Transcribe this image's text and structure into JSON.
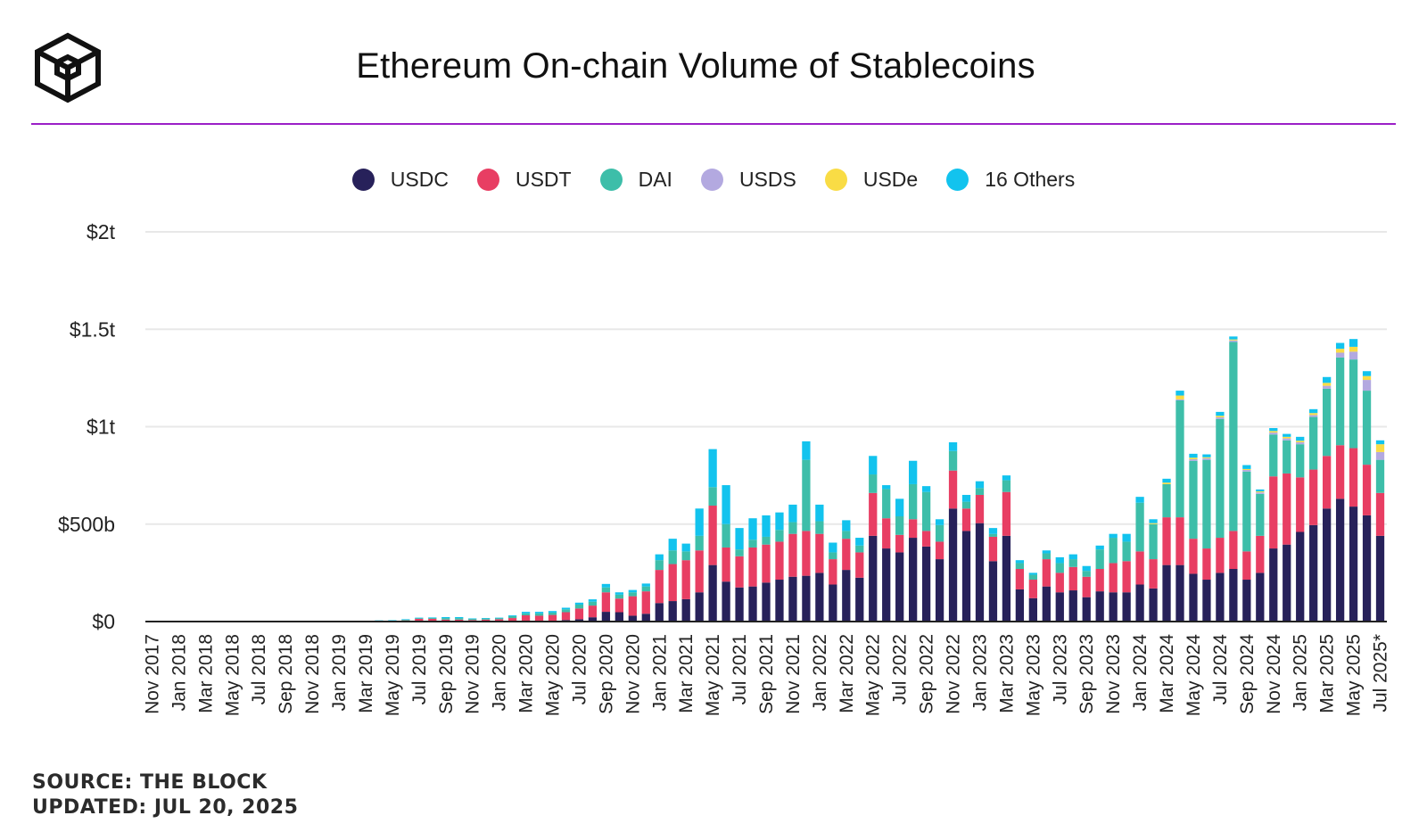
{
  "brand": {
    "logo_icon": "the-block-cube-logo-icon",
    "source": "SOURCE: THE BLOCK",
    "updated": "UPDATED: JUL 20, 2025"
  },
  "colors": {
    "USDC": "#27215a",
    "USDT": "#e83e63",
    "DAI": "#3dbea9",
    "USDS": "#b3a9e0",
    "USDe": "#f9dc45",
    "16 Others": "#12c3ee",
    "grid": "#e8e8e8",
    "axis": "#222222",
    "rule": "#9b1fc7"
  },
  "chart_data": {
    "type": "stacked-bar",
    "title": "Ethereum On-chain Volume of Stablecoins",
    "xlabel": "",
    "ylabel": "",
    "ylim": [
      0,
      2000
    ],
    "unit": "billions USD",
    "grid": true,
    "legend_position": "top-center",
    "y_ticks": [
      {
        "value": 0,
        "label": "$0"
      },
      {
        "value": 500,
        "label": "$500b"
      },
      {
        "value": 1000,
        "label": "$1t"
      },
      {
        "value": 1500,
        "label": "$1.5t"
      },
      {
        "value": 2000,
        "label": "$2t"
      }
    ],
    "x_tick_labels": [
      "Nov 2017",
      "Jan 2018",
      "Mar 2018",
      "May 2018",
      "Jul 2018",
      "Sep 2018",
      "Nov 2018",
      "Jan 2019",
      "Mar 2019",
      "May 2019",
      "Jul 2019",
      "Sep 2019",
      "Nov 2019",
      "Jan 2020",
      "Mar 2020",
      "May 2020",
      "Jul 2020",
      "Sep 2020",
      "Nov 2020",
      "Jan 2021",
      "Mar 2021",
      "May 2021",
      "Jul 2021",
      "Sep 2021",
      "Nov 2021",
      "Jan 2022",
      "Mar 2022",
      "May 2022",
      "Jul 2022",
      "Sep 2022",
      "Nov 2022",
      "Jan 2023",
      "Mar 2023",
      "May 2023",
      "Jul 2023",
      "Sep 2023",
      "Nov 2023",
      "Jan 2024",
      "Mar 2024",
      "May 2024",
      "Jul 2024",
      "Sep 2024",
      "Nov 2024",
      "Jan 2025",
      "Mar 2025",
      "May 2025",
      "Jul 2025*"
    ],
    "categories": [
      "Nov 2017",
      "Dec 2017",
      "Jan 2018",
      "Feb 2018",
      "Mar 2018",
      "Apr 2018",
      "May 2018",
      "Jun 2018",
      "Jul 2018",
      "Aug 2018",
      "Sep 2018",
      "Oct 2018",
      "Nov 2018",
      "Dec 2018",
      "Jan 2019",
      "Feb 2019",
      "Mar 2019",
      "Apr 2019",
      "May 2019",
      "Jun 2019",
      "Jul 2019",
      "Aug 2019",
      "Sep 2019",
      "Oct 2019",
      "Nov 2019",
      "Dec 2019",
      "Jan 2020",
      "Feb 2020",
      "Mar 2020",
      "Apr 2020",
      "May 2020",
      "Jun 2020",
      "Jul 2020",
      "Aug 2020",
      "Sep 2020",
      "Oct 2020",
      "Nov 2020",
      "Dec 2020",
      "Jan 2021",
      "Feb 2021",
      "Mar 2021",
      "Apr 2021",
      "May 2021",
      "Jun 2021",
      "Jul 2021",
      "Aug 2021",
      "Sep 2021",
      "Oct 2021",
      "Nov 2021",
      "Dec 2021",
      "Jan 2022",
      "Feb 2022",
      "Mar 2022",
      "Apr 2022",
      "May 2022",
      "Jun 2022",
      "Jul 2022",
      "Aug 2022",
      "Sep 2022",
      "Oct 2022",
      "Nov 2022",
      "Dec 2022",
      "Jan 2023",
      "Feb 2023",
      "Mar 2023",
      "Apr 2023",
      "May 2023",
      "Jun 2023",
      "Jul 2023",
      "Aug 2023",
      "Sep 2023",
      "Oct 2023",
      "Nov 2023",
      "Dec 2023",
      "Jan 2024",
      "Feb 2024",
      "Mar 2024",
      "Apr 2024",
      "May 2024",
      "Jun 2024",
      "Jul 2024",
      "Aug 2024",
      "Sep 2024",
      "Oct 2024",
      "Nov 2024",
      "Dec 2024",
      "Jan 2025",
      "Feb 2025",
      "Mar 2025",
      "Apr 2025",
      "May 2025",
      "Jun 2025",
      "Jul 2025*"
    ],
    "series": [
      {
        "name": "USDC",
        "values": [
          0,
          0,
          0,
          0,
          0,
          0,
          0,
          0,
          0,
          0,
          0,
          0,
          0,
          0,
          0,
          0,
          0,
          0,
          0,
          0,
          0,
          0,
          0,
          0,
          0,
          0,
          0,
          0,
          2,
          2,
          4,
          8,
          12,
          22,
          50,
          48,
          30,
          40,
          95,
          105,
          115,
          150,
          290,
          205,
          175,
          180,
          200,
          215,
          230,
          235,
          250,
          190,
          265,
          225,
          440,
          375,
          355,
          430,
          385,
          320,
          580,
          465,
          505,
          310,
          440,
          165,
          120,
          180,
          150,
          160,
          125,
          155,
          150,
          150,
          190,
          170,
          290,
          290,
          245,
          215,
          250,
          270,
          215,
          250,
          375,
          395,
          460,
          495,
          580,
          630,
          590,
          545,
          440
        ]
      },
      {
        "name": "USDT",
        "values": [
          0,
          0,
          0,
          0,
          0,
          0,
          0,
          0,
          0,
          0,
          0,
          0,
          0,
          0,
          0,
          0,
          0,
          0,
          2,
          6,
          14,
          14,
          10,
          10,
          8,
          10,
          12,
          18,
          30,
          28,
          30,
          40,
          55,
          60,
          100,
          70,
          100,
          115,
          170,
          190,
          200,
          215,
          305,
          175,
          160,
          200,
          195,
          195,
          220,
          230,
          200,
          130,
          160,
          130,
          220,
          155,
          90,
          95,
          80,
          90,
          195,
          115,
          145,
          125,
          225,
          105,
          95,
          140,
          100,
          120,
          105,
          115,
          150,
          160,
          170,
          150,
          245,
          245,
          180,
          160,
          180,
          195,
          145,
          190,
          370,
          365,
          280,
          285,
          270,
          275,
          300,
          260,
          220
        ]
      },
      {
        "name": "DAI",
        "values": [
          0,
          0,
          0,
          0,
          0,
          0,
          0,
          0,
          0,
          0,
          0,
          0,
          0,
          0,
          0,
          0,
          0,
          4,
          3,
          4,
          4,
          5,
          8,
          8,
          6,
          6,
          6,
          10,
          10,
          12,
          12,
          15,
          20,
          20,
          25,
          20,
          20,
          25,
          50,
          70,
          45,
          75,
          95,
          120,
          35,
          40,
          40,
          60,
          60,
          365,
          65,
          35,
          40,
          35,
          95,
          150,
          95,
          180,
          200,
          85,
          100,
          35,
          35,
          15,
          60,
          30,
          25,
          30,
          50,
          40,
          30,
          100,
          130,
          100,
          250,
          180,
          170,
          600,
          400,
          455,
          610,
          970,
          410,
          215,
          215,
          170,
          170,
          270,
          345,
          450,
          455,
          380,
          170
        ]
      },
      {
        "name": "USDS",
        "values": [
          0,
          0,
          0,
          0,
          0,
          0,
          0,
          0,
          0,
          0,
          0,
          0,
          0,
          0,
          0,
          0,
          0,
          0,
          0,
          0,
          0,
          0,
          0,
          0,
          0,
          0,
          0,
          0,
          0,
          0,
          0,
          0,
          0,
          0,
          0,
          0,
          0,
          0,
          0,
          0,
          0,
          0,
          0,
          0,
          0,
          0,
          0,
          0,
          0,
          0,
          0,
          0,
          0,
          0,
          0,
          0,
          0,
          0,
          0,
          0,
          0,
          0,
          0,
          0,
          0,
          0,
          0,
          0,
          0,
          0,
          0,
          0,
          0,
          0,
          0,
          0,
          0,
          5,
          8,
          8,
          8,
          8,
          8,
          8,
          10,
          10,
          10,
          10,
          15,
          25,
          40,
          55,
          40
        ]
      },
      {
        "name": "USDe",
        "values": [
          0,
          0,
          0,
          0,
          0,
          0,
          0,
          0,
          0,
          0,
          0,
          0,
          0,
          0,
          0,
          0,
          0,
          0,
          0,
          0,
          0,
          0,
          0,
          0,
          0,
          0,
          0,
          0,
          0,
          0,
          0,
          0,
          0,
          0,
          0,
          0,
          0,
          0,
          0,
          0,
          0,
          0,
          0,
          0,
          0,
          0,
          0,
          0,
          0,
          0,
          0,
          0,
          0,
          0,
          0,
          0,
          0,
          0,
          0,
          0,
          0,
          0,
          0,
          0,
          0,
          0,
          0,
          0,
          0,
          0,
          0,
          0,
          0,
          0,
          0,
          5,
          8,
          20,
          8,
          5,
          8,
          5,
          5,
          5,
          8,
          8,
          8,
          10,
          15,
          20,
          25,
          20,
          40
        ]
      },
      {
        "name": "16 Others",
        "values": [
          0,
          0,
          0,
          0,
          0,
          0,
          0,
          0,
          0,
          0,
          0,
          0,
          0,
          0,
          0,
          0,
          0,
          2,
          2,
          2,
          2,
          2,
          5,
          5,
          2,
          2,
          2,
          4,
          8,
          8,
          8,
          8,
          10,
          12,
          18,
          12,
          12,
          15,
          30,
          60,
          40,
          140,
          195,
          200,
          110,
          110,
          110,
          90,
          90,
          95,
          85,
          50,
          55,
          40,
          95,
          20,
          90,
          120,
          30,
          30,
          45,
          35,
          35,
          30,
          25,
          15,
          10,
          15,
          30,
          25,
          25,
          20,
          20,
          40,
          30,
          20,
          20,
          25,
          20,
          15,
          20,
          15,
          20,
          10,
          15,
          15,
          20,
          20,
          30,
          30,
          40,
          25,
          20
        ]
      }
    ]
  }
}
